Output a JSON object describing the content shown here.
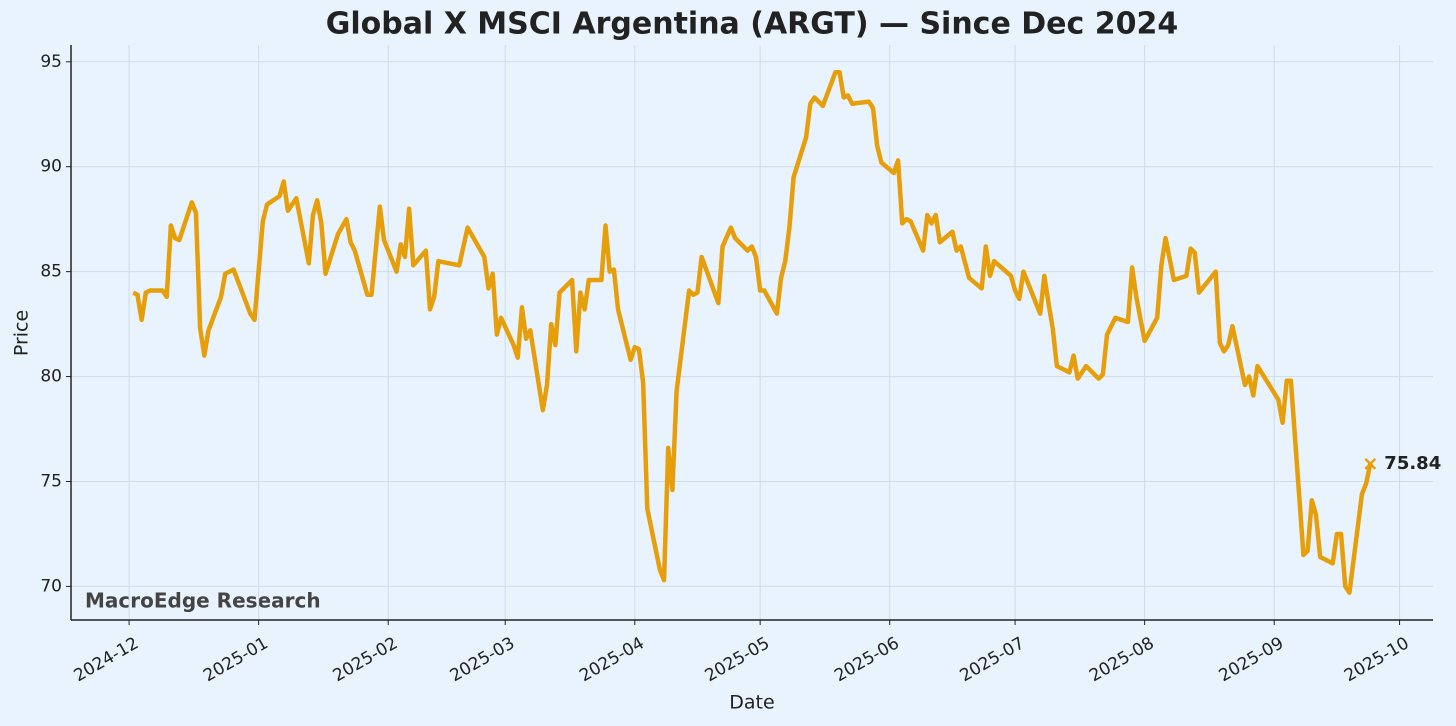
{
  "chart_data": {
    "type": "line",
    "title": "Global X MSCI Argentina (ARGT) — Since Dec 2024",
    "x_label": "Date",
    "y_label": "Price",
    "watermark": "MacroEdge Research",
    "x": [
      1,
      2,
      3,
      4,
      5,
      8,
      9,
      10,
      11,
      12,
      15,
      16,
      17,
      18,
      19,
      22,
      23,
      25,
      29,
      30,
      32,
      33,
      36,
      37,
      38,
      40,
      43,
      44,
      45,
      46,
      47,
      50,
      52,
      53,
      54,
      57,
      58,
      60,
      61,
      64,
      65,
      66,
      67,
      68,
      71,
      72,
      73,
      74,
      79,
      81,
      85,
      86,
      87,
      88,
      89,
      92,
      93,
      94,
      95,
      96,
      99,
      100,
      101,
      102,
      103,
      106,
      107,
      108,
      109,
      110,
      113,
      114,
      115,
      116,
      117,
      120,
      121,
      122,
      123,
      124,
      127,
      128,
      129,
      130,
      131,
      134,
      135,
      136,
      137,
      141,
      142,
      144,
      145,
      148,
      149,
      150,
      151,
      152,
      155,
      156,
      157,
      158,
      159,
      162,
      163,
      164,
      166,
      169,
      170,
      171,
      172,
      173,
      177,
      178,
      179,
      180,
      183,
      184,
      185,
      186,
      187,
      190,
      191,
      192,
      193,
      194,
      197,
      198,
      199,
      201,
      204,
      205,
      206,
      207,
      211,
      212,
      213,
      214,
      218,
      219,
      220,
      221,
      222,
      225,
      226,
      227,
      229,
      232,
      233,
      234,
      236,
      239,
      240,
      241,
      243,
      246,
      247,
      248,
      250,
      253,
      254,
      255,
      256,
      260,
      261,
      262,
      263,
      264,
      267,
      268,
      269,
      270,
      275,
      276,
      277,
      278,
      281,
      282,
      283,
      284,
      285,
      288,
      289,
      290,
      291,
      292,
      295,
      296,
      297
    ],
    "series": [
      {
        "color": "#e69f0a",
        "values": [
          84.0,
          83.9,
          82.7,
          84.0,
          84.1,
          84.1,
          83.8,
          87.2,
          86.6,
          86.5,
          88.3,
          87.8,
          82.3,
          81.0,
          82.2,
          83.8,
          84.9,
          85.1,
          83.0,
          82.7,
          87.4,
          88.2,
          88.6,
          89.3,
          87.9,
          88.5,
          85.4,
          87.7,
          88.4,
          87.3,
          84.9,
          86.8,
          87.5,
          86.4,
          86.0,
          83.9,
          83.9,
          88.1,
          86.5,
          85.0,
          86.3,
          85.7,
          88.0,
          85.3,
          86.0,
          83.2,
          83.8,
          85.5,
          85.3,
          87.1,
          85.7,
          84.2,
          84.9,
          82.0,
          82.8,
          81.5,
          80.9,
          83.3,
          81.8,
          82.2,
          78.4,
          79.6,
          82.5,
          81.5,
          84.0,
          84.6,
          81.2,
          84.0,
          83.2,
          84.6,
          84.6,
          87.2,
          85.0,
          85.1,
          83.2,
          80.8,
          81.4,
          81.3,
          79.7,
          73.7,
          70.8,
          70.3,
          76.6,
          74.6,
          79.3,
          84.1,
          83.9,
          84.0,
          85.7,
          83.5,
          86.2,
          87.1,
          86.6,
          86.0,
          86.2,
          85.7,
          84.1,
          84.1,
          83.0,
          84.7,
          85.5,
          87.1,
          89.5,
          91.4,
          93.0,
          93.3,
          92.9,
          94.5,
          94.5,
          93.3,
          93.4,
          93.0,
          93.1,
          92.8,
          91.0,
          90.2,
          89.7,
          90.3,
          87.3,
          87.5,
          87.4,
          86.0,
          87.7,
          87.3,
          87.7,
          86.4,
          86.9,
          86.0,
          86.2,
          84.7,
          84.2,
          86.2,
          84.8,
          85.5,
          84.8,
          84.1,
          83.7,
          85.0,
          83.0,
          84.8,
          83.5,
          82.3,
          80.5,
          80.2,
          81.0,
          79.9,
          80.5,
          79.9,
          80.1,
          82.0,
          82.8,
          82.6,
          85.2,
          83.8,
          81.7,
          82.8,
          85.3,
          86.6,
          84.6,
          84.8,
          86.1,
          85.9,
          84.0,
          85.0,
          81.6,
          81.2,
          81.5,
          82.4,
          79.6,
          80.0,
          79.1,
          80.5,
          78.9,
          77.8,
          79.8,
          79.8,
          71.5,
          71.7,
          74.1,
          73.4,
          71.4,
          71.1,
          72.5,
          72.5,
          70.0,
          69.7,
          74.4,
          74.9,
          75.84
        ]
      }
    ],
    "xlim": [
      -13.9,
      312
    ],
    "xticks": [
      {
        "value": 0,
        "label": "2024-12"
      },
      {
        "value": 31,
        "label": "2025-01"
      },
      {
        "value": 62,
        "label": "2025-02"
      },
      {
        "value": 90,
        "label": "2025-03"
      },
      {
        "value": 121,
        "label": "2025-04"
      },
      {
        "value": 151,
        "label": "2025-05"
      },
      {
        "value": 182,
        "label": "2025-06"
      },
      {
        "value": 212,
        "label": "2025-07"
      },
      {
        "value": 243,
        "label": "2025-08"
      },
      {
        "value": 274,
        "label": "2025-09"
      },
      {
        "value": 304,
        "label": "2025-10"
      }
    ],
    "ylim": [
      68.4,
      95.8
    ],
    "yticks": [
      70,
      75,
      80,
      85,
      90,
      95
    ],
    "grid": true
  }
}
